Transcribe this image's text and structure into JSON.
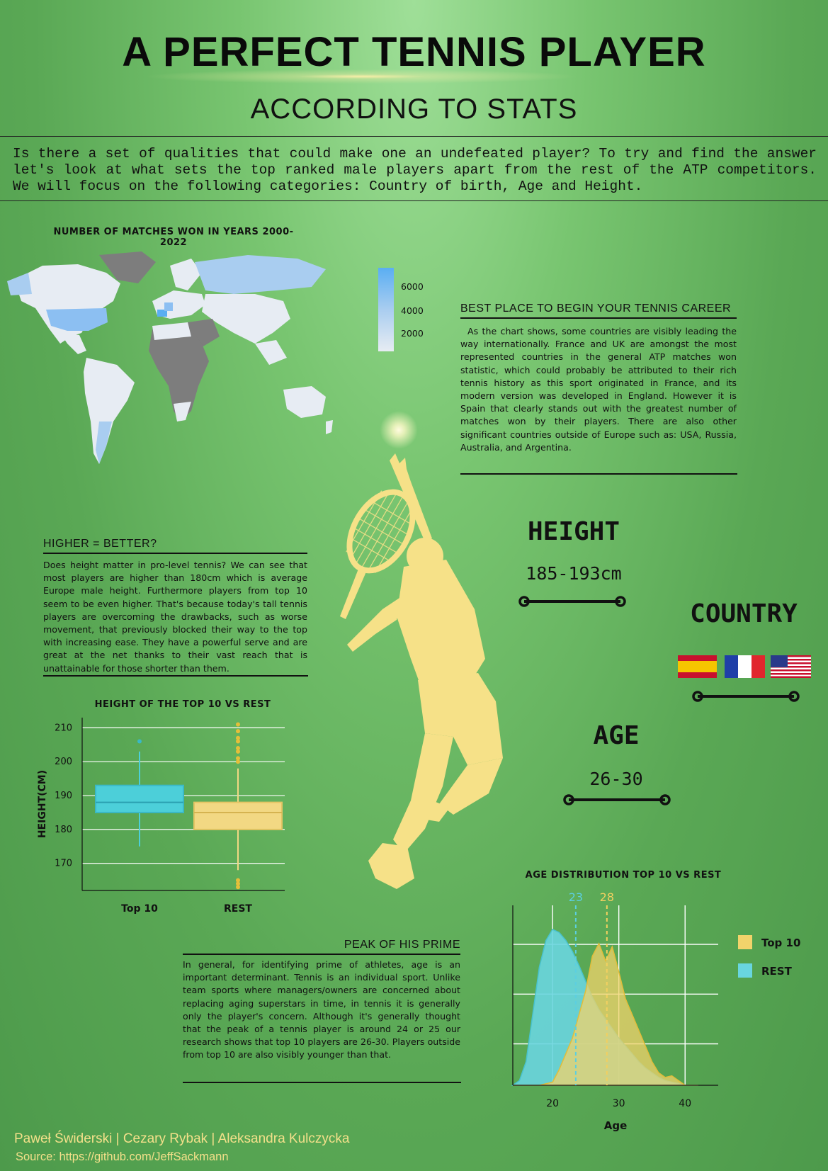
{
  "header": {
    "title": "A PERFECT TENNIS PLAYER",
    "subtitle": "ACCORDING TO STATS",
    "intro": "Is there a set of qualities that could make one an undefeated player? To try and find the answer let's look at what sets the top ranked male players apart from the rest of the ATP competitors. We will focus on the following categories: Country of birth, Age and Height."
  },
  "map": {
    "title": "NUMBER OF MATCHES WON IN YEARS 2000-2022",
    "legend_ticks": [
      "6000",
      "4000",
      "2000"
    ],
    "colors": {
      "high": "#5aaef2",
      "mid": "#a9cdf0",
      "low": "#e7ecf3",
      "none": "#7d7d7d"
    }
  },
  "sections": {
    "career": {
      "heading": "BEST PLACE TO BEGIN YOUR TENNIS CAREER",
      "text": "As the chart shows, some countries are visibly leading the way internationally. France and UK are amongst the most represented countries in the general ATP matches won statistic, which could probably be attributed to their rich tennis history as this sport originated in France, and its modern version was developed in England. However it is Spain that clearly stands out with the greatest number of matches won by their players. There are also other significant countries outside of Europe such as: USA, Russia, Australia, and Argentina."
    },
    "height": {
      "heading": "HIGHER = BETTER?",
      "text": "Does height matter in pro-level tennis? We can see that most players are higher than 180cm which is average Europe male height. Furthermore players from top 10 seem to be even higher. That's because today's tall tennis players are overcoming the drawbacks, such as worse movement, that previously blocked their way to the top with increasing ease. They have a powerful serve and are great at the net thanks to their vast reach that is unattainable for those shorter than them."
    },
    "prime": {
      "heading": "PEAK OF HIS PRIME",
      "text": "In general, for identifying prime of athletes, age is an important determinant. Tennis is an individual sport. Unlike team sports where managers/owners are concerned about replacing aging superstars in time, in tennis it is generally only the player's concern. Although it's generally thought that the peak of a tennis player is around 24 or 25 our research shows that top 10 players are 26-30. Players outside from top 10 are also visibly younger than that."
    }
  },
  "stats": {
    "height_label": "HEIGHT",
    "height_value": "185-193cm",
    "country_label": "COUNTRY",
    "age_label": "AGE",
    "age_value": "26-30"
  },
  "chart_data": [
    {
      "type": "box",
      "title": "HEIGHT OF THE TOP 10 VS REST",
      "ylabel": "HEIGHT(CM)",
      "ylim": [
        162,
        213
      ],
      "yticks": [
        170,
        180,
        190,
        200,
        210
      ],
      "categories": [
        "Top 10",
        "REST"
      ],
      "series": [
        {
          "name": "Top 10",
          "color": "#4ccfd9",
          "whisker_low": 175,
          "q1": 185,
          "median": 188,
          "q3": 193,
          "whisker_high": 203,
          "outliers": [
            206
          ]
        },
        {
          "name": "REST",
          "color": "#f2d883",
          "whisker_low": 168,
          "q1": 180,
          "median": 185,
          "q3": 188,
          "whisker_high": 198,
          "outliers": [
            163,
            164,
            165,
            200,
            201,
            203,
            204,
            206,
            207,
            209,
            211
          ]
        }
      ],
      "grid": true
    },
    {
      "type": "area",
      "title": "AGE DISTRIBUTION TOP 10 VS REST",
      "xlabel": "Age",
      "xlim": [
        14,
        45
      ],
      "xticks": [
        20,
        30,
        40
      ],
      "markers": [
        {
          "label": "23",
          "x": 23.5,
          "color": "#5ccfe0"
        },
        {
          "label": "28",
          "x": 28.2,
          "color": "#f2d060"
        }
      ],
      "legend": {
        "position": "right",
        "entries": [
          "Top 10",
          "REST"
        ]
      },
      "series": [
        {
          "name": "Top 10",
          "color": "#f2d36b",
          "x": [
            14,
            18,
            20,
            21,
            22,
            23,
            24,
            25,
            26,
            27,
            28,
            29,
            30,
            31,
            32,
            33,
            34,
            35,
            36,
            37,
            38,
            39,
            40,
            42
          ],
          "y": [
            0,
            0,
            0.02,
            0.1,
            0.2,
            0.3,
            0.45,
            0.6,
            0.82,
            0.9,
            0.79,
            0.88,
            0.72,
            0.55,
            0.45,
            0.35,
            0.25,
            0.15,
            0.08,
            0.05,
            0.06,
            0.03,
            0,
            0
          ]
        },
        {
          "name": "REST",
          "color": "#69d5df",
          "x": [
            14,
            15,
            16,
            17,
            18,
            19,
            20,
            21,
            22,
            23,
            24,
            25,
            26,
            27,
            28,
            29,
            30,
            31,
            32,
            33,
            34,
            35,
            36,
            37,
            38,
            39,
            40,
            42
          ],
          "y": [
            0,
            0.03,
            0.15,
            0.45,
            0.75,
            0.92,
            0.99,
            0.97,
            0.92,
            0.85,
            0.76,
            0.66,
            0.56,
            0.48,
            0.42,
            0.36,
            0.3,
            0.25,
            0.2,
            0.15,
            0.11,
            0.08,
            0.05,
            0.03,
            0.02,
            0.01,
            0,
            0
          ]
        }
      ],
      "grid": true
    }
  ],
  "footer": {
    "authors": "Paweł Świderski | Cezary Rybak | Aleksandra Kulczycka",
    "source": "Source: https://github.com/JeffSackmann"
  }
}
